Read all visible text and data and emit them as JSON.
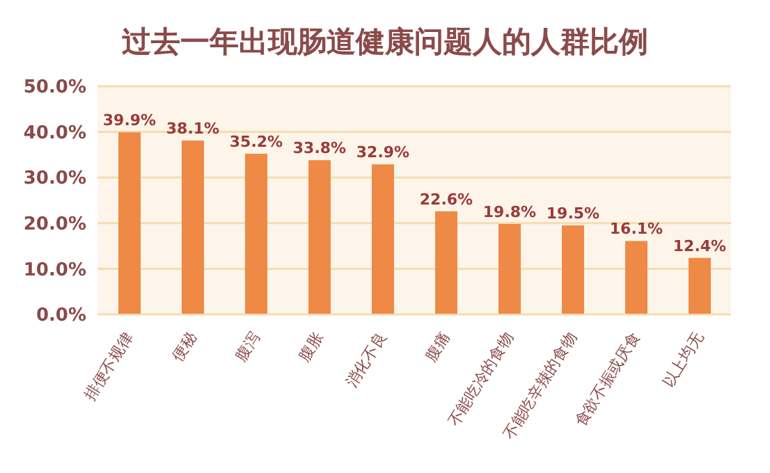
{
  "chart_data": {
    "type": "bar",
    "title": "过去一年出现肠道健康问题人的人群比例",
    "categories": [
      "排便不规律",
      "便秘",
      "腹泻",
      "腹胀",
      "消化不良",
      "腹痛",
      "不能吃冷的食物",
      "不能吃辛辣的食物",
      "食欲不振或厌食",
      "以上均无"
    ],
    "values": [
      39.9,
      38.1,
      35.2,
      33.8,
      32.9,
      22.6,
      19.8,
      19.5,
      16.1,
      12.4
    ],
    "value_labels": [
      "39.9%",
      "38.1%",
      "35.2%",
      "33.8%",
      "32.9%",
      "22.6%",
      "19.8%",
      "19.5%",
      "16.1%",
      "12.4%"
    ],
    "color": "#ee8a45",
    "ylim": [
      0,
      50
    ],
    "yticks": [
      {
        "value": 0,
        "label": "0.0%"
      },
      {
        "value": 10,
        "label": "10.0%"
      },
      {
        "value": 20,
        "label": "20.0%"
      },
      {
        "value": 30,
        "label": "30.0%"
      },
      {
        "value": 40,
        "label": "40.0%"
      },
      {
        "value": 50,
        "label": "50.0%"
      }
    ],
    "grid": "y",
    "legend": false
  }
}
